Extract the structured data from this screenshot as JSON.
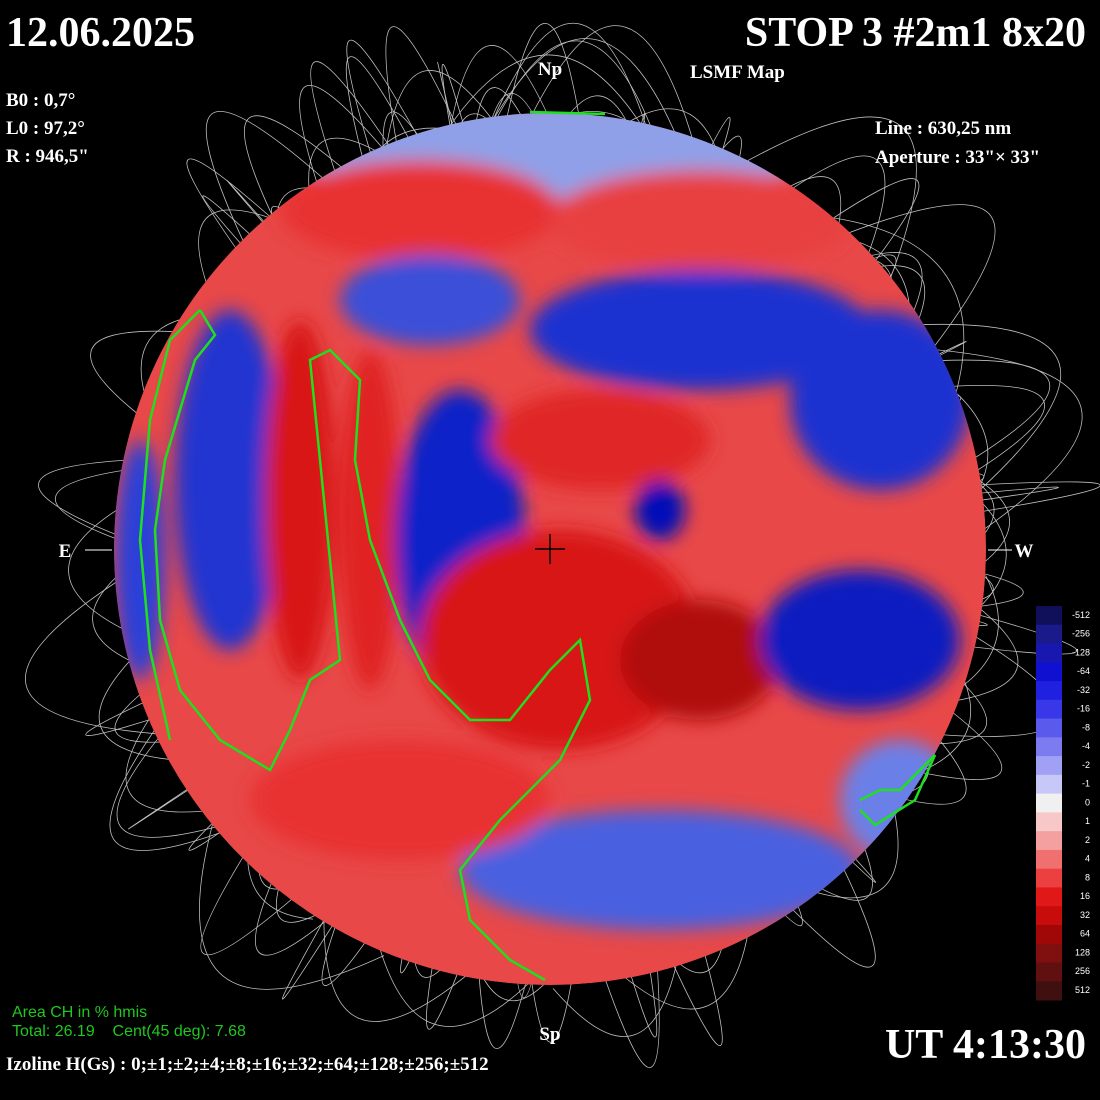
{
  "header": {
    "date": "12.06.2025",
    "title": "STOP 3 #2m1 8x20",
    "subtitle": "LSMF  Map",
    "ut": "UT 4:13:30"
  },
  "params": {
    "b0": "B0 : 0,7°",
    "l0": "L0 : 97,2°",
    "r": "R  : 946,5\"",
    "line": "Line :  630,25 nm",
    "aperture": "Aperture : 33\"× 33\""
  },
  "directions": {
    "north": "Np",
    "south": "Sp",
    "east": "E",
    "west": "W"
  },
  "coronal_holes": {
    "title": "Area CH in % hmis",
    "stats": "Total: 26.19    Cent(45 deg): 7.68"
  },
  "isolines": "Izoline H(Gs) : 0;±1;±2;±4;±8;±16;±32;±64;±128;±256;±512",
  "colorbar": {
    "labels": [
      "-512",
      "-256",
      "-128",
      "-64",
      "-32",
      "-16",
      "-8",
      "-4",
      "-2",
      "-1",
      "0",
      "1",
      "2",
      "4",
      "8",
      "16",
      "32",
      "64",
      "128",
      "256",
      "512"
    ]
  }
}
